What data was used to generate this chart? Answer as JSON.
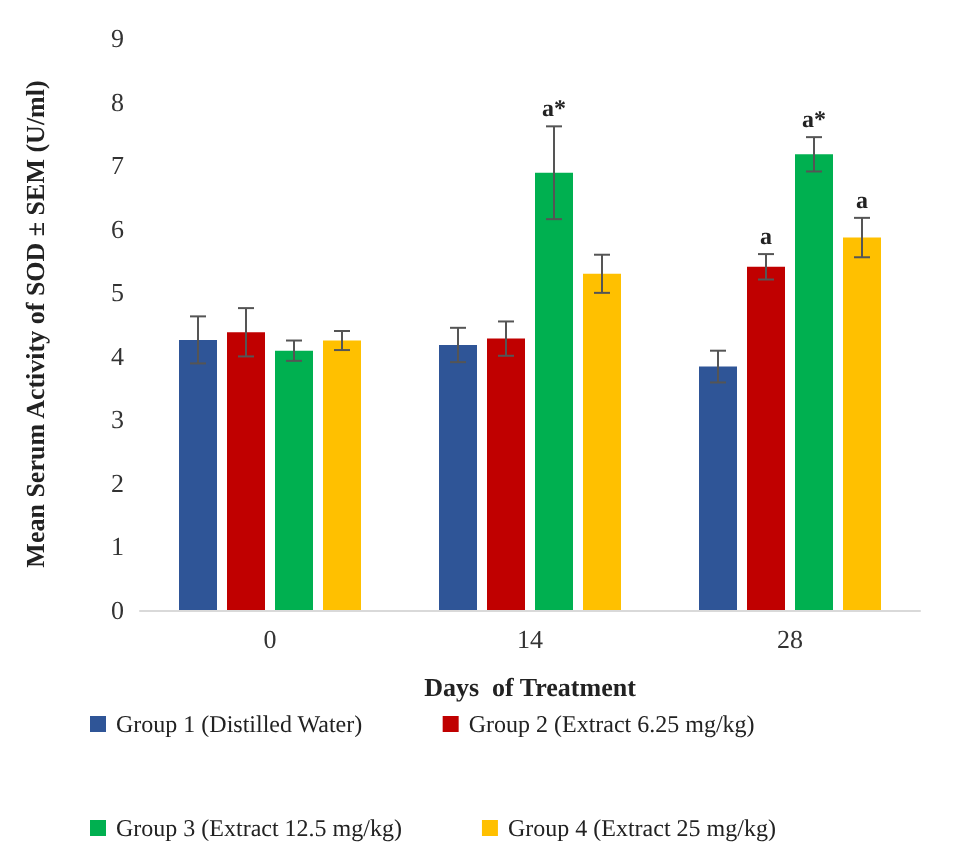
{
  "chart_data": {
    "type": "bar",
    "xlabel": "Days  of Treatment",
    "ylabel": "Mean Serum Activity of SOD ± SEM (U/ml)",
    "categories": [
      "0",
      "14",
      "28"
    ],
    "series": [
      {
        "name": "Group 1 (Distilled Water)",
        "color": "#2f5597",
        "values": [
          4.25,
          4.17,
          3.83
        ],
        "errors": [
          0.37,
          0.27,
          0.25
        ]
      },
      {
        "name": "Group 2 (Extract 6.25 mg/kg)",
        "color": "#c00000",
        "values": [
          4.37,
          4.27,
          5.4
        ],
        "errors": [
          0.38,
          0.27,
          0.2
        ]
      },
      {
        "name": "Group 3 (Extract 12.5 mg/kg)",
        "color": "#00b050",
        "values": [
          4.08,
          6.88,
          7.17
        ],
        "errors": [
          0.16,
          0.73,
          0.27
        ]
      },
      {
        "name": "Group 4 (Extract 25 mg/kg)",
        "color": "#ffc000",
        "values": [
          4.24,
          5.29,
          5.86
        ],
        "errors": [
          0.15,
          0.3,
          0.31
        ]
      }
    ],
    "annotations": [
      {
        "text": "a*",
        "x": "14",
        "y": 6.88
      },
      {
        "text": "a",
        "x": "28",
        "y": 5.4
      },
      {
        "text": "a*",
        "x": "28",
        "y": 7.17
      },
      {
        "text": "a",
        "x": "28",
        "y": 5.86
      }
    ],
    "ylim": [
      0,
      9
    ],
    "yticks": [
      0,
      1,
      2,
      3,
      4,
      5,
      6,
      7,
      8,
      9
    ],
    "grid": false,
    "legend": "bottom"
  }
}
